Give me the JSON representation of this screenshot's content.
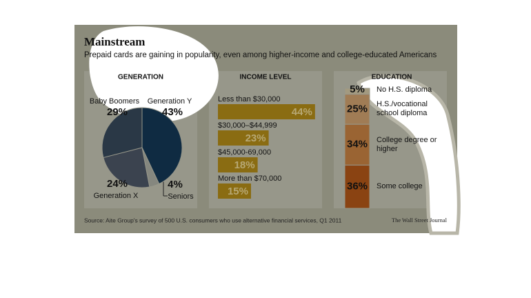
{
  "header": {
    "title": "Mainstream",
    "subtitle": "Prepaid cards are gaining in popularity, even among higher-income and college-educated Americans"
  },
  "chart_data": [
    {
      "type": "pie",
      "title": "GENERATION",
      "categories": [
        "Generation Y",
        "Seniors",
        "Generation X",
        "Baby Boomers"
      ],
      "values": [
        43,
        4,
        24,
        29
      ],
      "value_labels": [
        "43%",
        "4%",
        "24%",
        "29%"
      ],
      "colors": [
        "#0f2b42",
        "#85877f",
        "#3b434f",
        "#2a3846"
      ]
    },
    {
      "type": "bar",
      "title": "INCOME LEVEL",
      "categories": [
        "Less than $30,000",
        "$30,000–$44,999",
        "$45,000-69,000",
        "More than $70,000"
      ],
      "values": [
        44,
        23,
        18,
        15
      ],
      "value_labels": [
        "44%",
        "23%",
        "18%",
        "15%"
      ],
      "color": "#8a6c12"
    },
    {
      "type": "stacked_bar",
      "title": "EDUCATION",
      "categories": [
        "No H.S. diploma",
        "H.S./vocational school diploma",
        "College degree or higher",
        "Some college"
      ],
      "values": [
        5,
        25,
        34,
        36
      ],
      "value_labels": [
        "5%",
        "25%",
        "34%",
        "36%"
      ],
      "colors": [
        "#a39a80",
        "#a07c55",
        "#9a6433",
        "#8a4312"
      ]
    }
  ],
  "footer": {
    "source": "Source: Aite Group's survey of 500 U.S. consumers who use alternative financial services, Q1 2011",
    "credit": "The Wall Street Journal"
  }
}
